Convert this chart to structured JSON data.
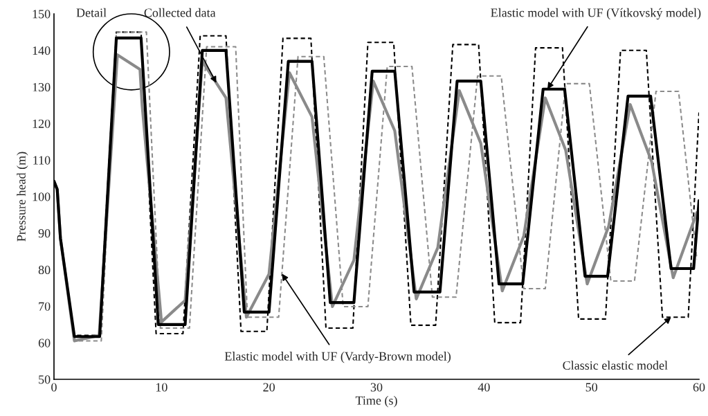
{
  "chart_data": {
    "type": "line",
    "xlabel": "Time (s)",
    "ylabel": "Pressure head (m)",
    "xlim": [
      0,
      60
    ],
    "xticks": [
      0,
      10,
      20,
      30,
      40,
      50,
      60
    ],
    "ylim": [
      50,
      150
    ],
    "yticks": [
      50,
      60,
      70,
      80,
      90,
      100,
      110,
      120,
      130,
      140,
      150
    ],
    "grid": false,
    "legend": false,
    "marker": "none",
    "annotations": [
      "Detail"
    ],
    "series": [
      {
        "name": "Classic elastic model",
        "color": "#000000",
        "line_style": "dashed",
        "x": [
          0,
          0.3,
          0.6,
          1.9,
          4.2,
          5.8,
          8.1,
          9.5,
          12.0,
          13.6,
          16.0,
          17.4,
          19.8,
          21.3,
          23.9,
          25.3,
          27.8,
          29.2,
          31.6,
          33.2,
          35.5,
          37.1,
          39.5,
          41.0,
          43.4,
          44.8,
          47.3,
          48.8,
          51.3,
          52.7,
          55.1,
          56.6,
          59.0,
          60
        ],
        "values": [
          104.2,
          102,
          88.6,
          62,
          62,
          145,
          145,
          62.5,
          62.5,
          144,
          144,
          63.1,
          63.1,
          143.3,
          143.3,
          64,
          64,
          142.2,
          142.2,
          64.8,
          64.8,
          141.6,
          141.6,
          65.5,
          65.5,
          140.7,
          140.7,
          66.5,
          66.5,
          140,
          140,
          67,
          67,
          123
        ]
      },
      {
        "name": "Elastic model with UF (Vardy-Brown model)",
        "color": "#8c8c8c",
        "line_style": "dashed",
        "x": [
          0,
          0.3,
          0.6,
          1.9,
          4.4,
          5.8,
          8.6,
          9.9,
          12.6,
          14.2,
          16.9,
          18.0,
          20.9,
          22.7,
          25.1,
          26.9,
          29.2,
          31.0,
          33.3,
          35.2,
          37.4,
          39.4,
          41.6,
          43.7,
          45.7,
          47.6,
          49.8,
          51.8,
          54.0,
          56.0,
          58.1,
          59.8
        ],
        "values": [
          104.2,
          102,
          88.6,
          60.5,
          60.5,
          145,
          145,
          64,
          64,
          141,
          141,
          67,
          67,
          138.3,
          138.3,
          69.9,
          69.9,
          135.6,
          135.6,
          72.5,
          72.5,
          133,
          133,
          74.8,
          74.8,
          130.9,
          130.9,
          76.9,
          76.9,
          128.8,
          128.8,
          82.8
        ]
      },
      {
        "name": "Collected data",
        "color": "#8a8a8a",
        "line_style": "solid",
        "x": [
          0,
          0.3,
          0.6,
          1.9,
          4.2,
          5.9,
          8.0,
          8.2,
          10.0,
          12.2,
          13.8,
          16.0,
          17.9,
          20.0,
          21.9,
          24.0,
          25.9,
          27.9,
          29.7,
          31.7,
          33.7,
          35.7,
          37.7,
          39.7,
          41.7,
          43.7,
          45.7,
          47.6,
          49.6,
          51.6,
          53.6,
          55.6,
          57.6,
          59.8
        ],
        "values": [
          104.2,
          102,
          88.6,
          60.5,
          62,
          138.8,
          134.8,
          125,
          65.7,
          71.6,
          137,
          127,
          67,
          78.8,
          133.9,
          121.8,
          69.9,
          82.6,
          131.6,
          118,
          72,
          86,
          129,
          114.6,
          74.2,
          89.2,
          127,
          112.7,
          76.1,
          91.9,
          125.2,
          109.5,
          77.8,
          95.6
        ]
      },
      {
        "name": "Elastic model with UF (Vítkovský model)",
        "color": "#000000",
        "line_style": "solid",
        "x": [
          0,
          0.3,
          0.6,
          1.9,
          4.25,
          5.8,
          8.1,
          9.7,
          12.2,
          13.8,
          16.0,
          17.7,
          20.0,
          21.8,
          24.0,
          25.7,
          27.9,
          29.6,
          31.7,
          33.5,
          35.9,
          37.5,
          39.7,
          41.4,
          43.6,
          45.5,
          47.5,
          49.4,
          51.5,
          53.4,
          55.5,
          57.4,
          59.5,
          60
        ],
        "values": [
          104.2,
          102,
          88.6,
          61.7,
          61.7,
          143.4,
          143.4,
          65,
          65,
          140,
          140,
          68.4,
          68.4,
          137,
          137,
          71,
          71,
          134.3,
          134.3,
          73.9,
          73.9,
          131.6,
          131.6,
          76.1,
          76.1,
          129.4,
          129.4,
          78.2,
          78.2,
          127.5,
          127.5,
          80.3,
          80.3,
          98.9
        ]
      }
    ]
  }
}
